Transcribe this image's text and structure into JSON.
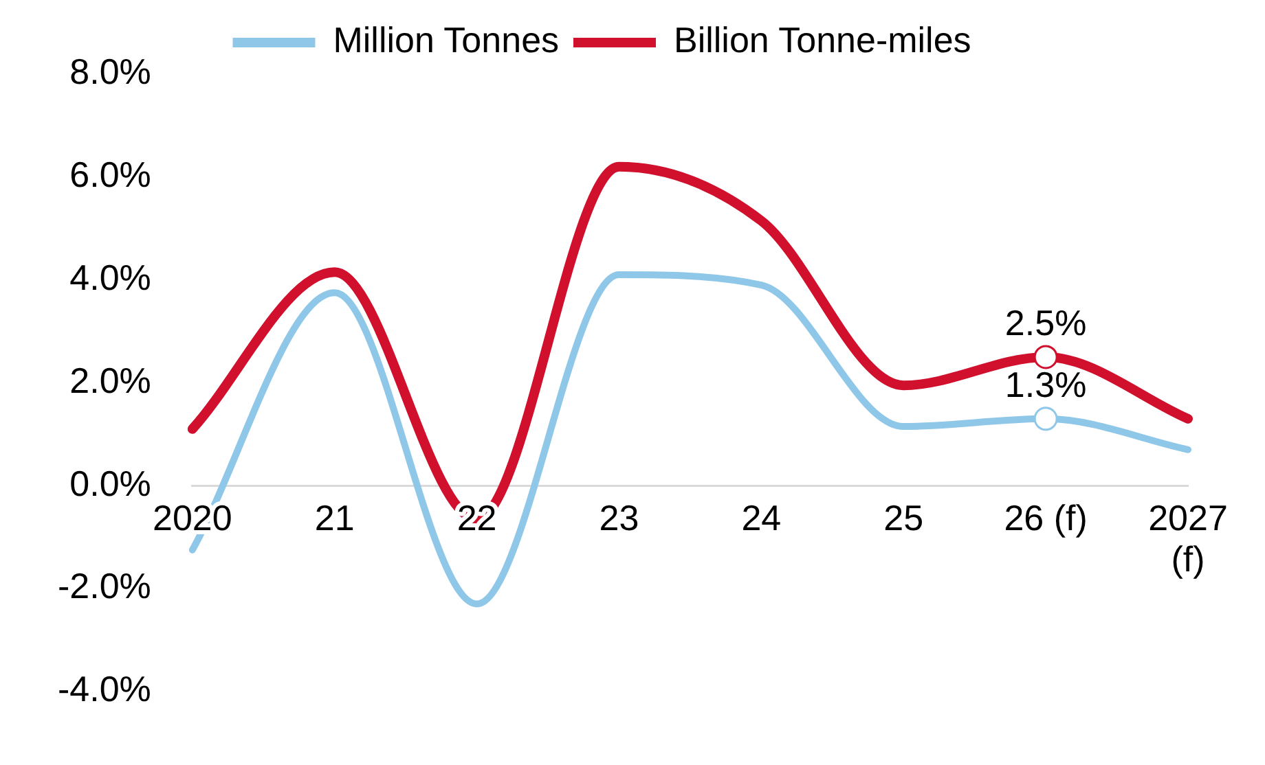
{
  "chart_data": {
    "type": "line",
    "categories": [
      "2020",
      "21",
      "22",
      "23",
      "24",
      "25",
      "26 (f)",
      "2027\n(f)"
    ],
    "series": [
      {
        "name": "Million Tonnes",
        "color": "#8ec7e8",
        "values": [
          -1.25,
          3.75,
          -2.3,
          4.1,
          3.9,
          1.15,
          1.3,
          0.7
        ],
        "value_labels": [
          null,
          null,
          null,
          null,
          null,
          null,
          "1.3%",
          null
        ]
      },
      {
        "name": "Billion Tonne-miles",
        "color": "#d0102c",
        "values": [
          1.1,
          4.15,
          -0.65,
          6.2,
          5.15,
          1.95,
          2.5,
          1.3
        ],
        "value_labels": [
          null,
          null,
          null,
          null,
          null,
          null,
          "2.5%",
          null
        ]
      }
    ],
    "ylim": [
      -4,
      8
    ],
    "yticks": [
      {
        "value": -4,
        "label": "-4.0%"
      },
      {
        "value": -2,
        "label": "-2.0%"
      },
      {
        "value": 0,
        "label": "0.0%"
      },
      {
        "value": 2,
        "label": "2.0%"
      },
      {
        "value": 4,
        "label": "4.0%"
      },
      {
        "value": 6,
        "label": "6.0%"
      },
      {
        "value": 8,
        "label": "8.0%"
      }
    ],
    "grid": false,
    "legend": "top",
    "marker": "none",
    "line_style": "solid"
  }
}
